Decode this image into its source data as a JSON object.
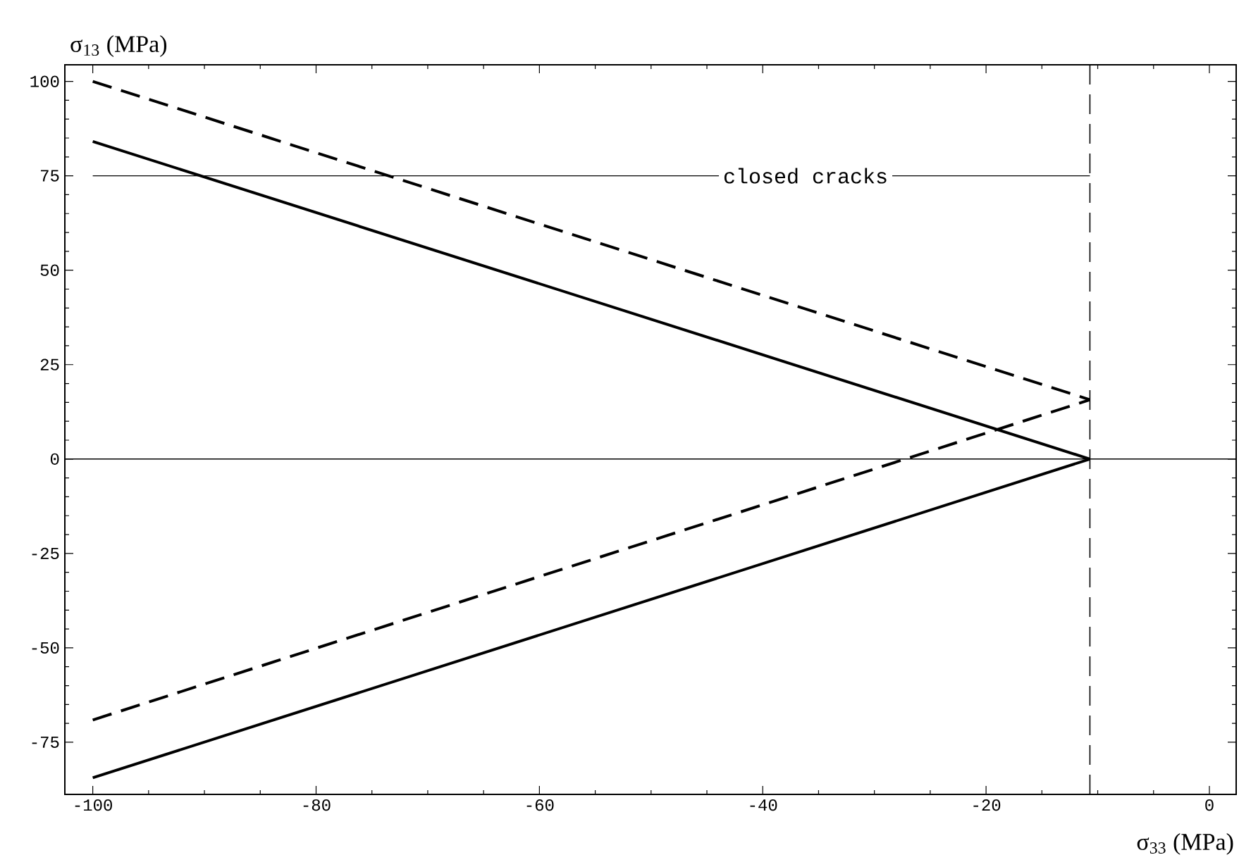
{
  "chart_data": {
    "type": "line",
    "xlabel": "σ$_{33}$ (MPa)",
    "ylabel": "σ$_{13}$ (MPa)",
    "xlim": [
      -102.5,
      2.4
    ],
    "ylim": [
      -88.8,
      104.4
    ],
    "xticks": [
      -100,
      -80,
      -60,
      -40,
      -20,
      0
    ],
    "yticks": [
      -75,
      -50,
      -25,
      0,
      25,
      50,
      75,
      100
    ],
    "x": [
      -100,
      -10.7
    ],
    "series": [
      {
        "color": "#000000",
        "line_style": "dashed",
        "values": [
          100,
          15.7
        ]
      },
      {
        "color": "#000000",
        "line_style": "solid",
        "values": [
          84.1,
          0
        ]
      },
      {
        "color": "#000000",
        "line_style": "dashed",
        "values": [
          -69.1,
          15.7
        ]
      },
      {
        "color": "#000000",
        "line_style": "solid",
        "values": [
          -84.4,
          0
        ]
      }
    ],
    "ref_lines": [
      {
        "axis": "x",
        "value": -10.7,
        "line_style": "dashed",
        "color": "#000000"
      },
      {
        "axis": "y",
        "value": 0,
        "line_style": "solid",
        "color": "#000000"
      },
      {
        "axis": "y",
        "value": 75,
        "label": "closed cracks",
        "line_style": "solid",
        "color": "#000000"
      }
    ],
    "marker": "none",
    "grid": false
  }
}
